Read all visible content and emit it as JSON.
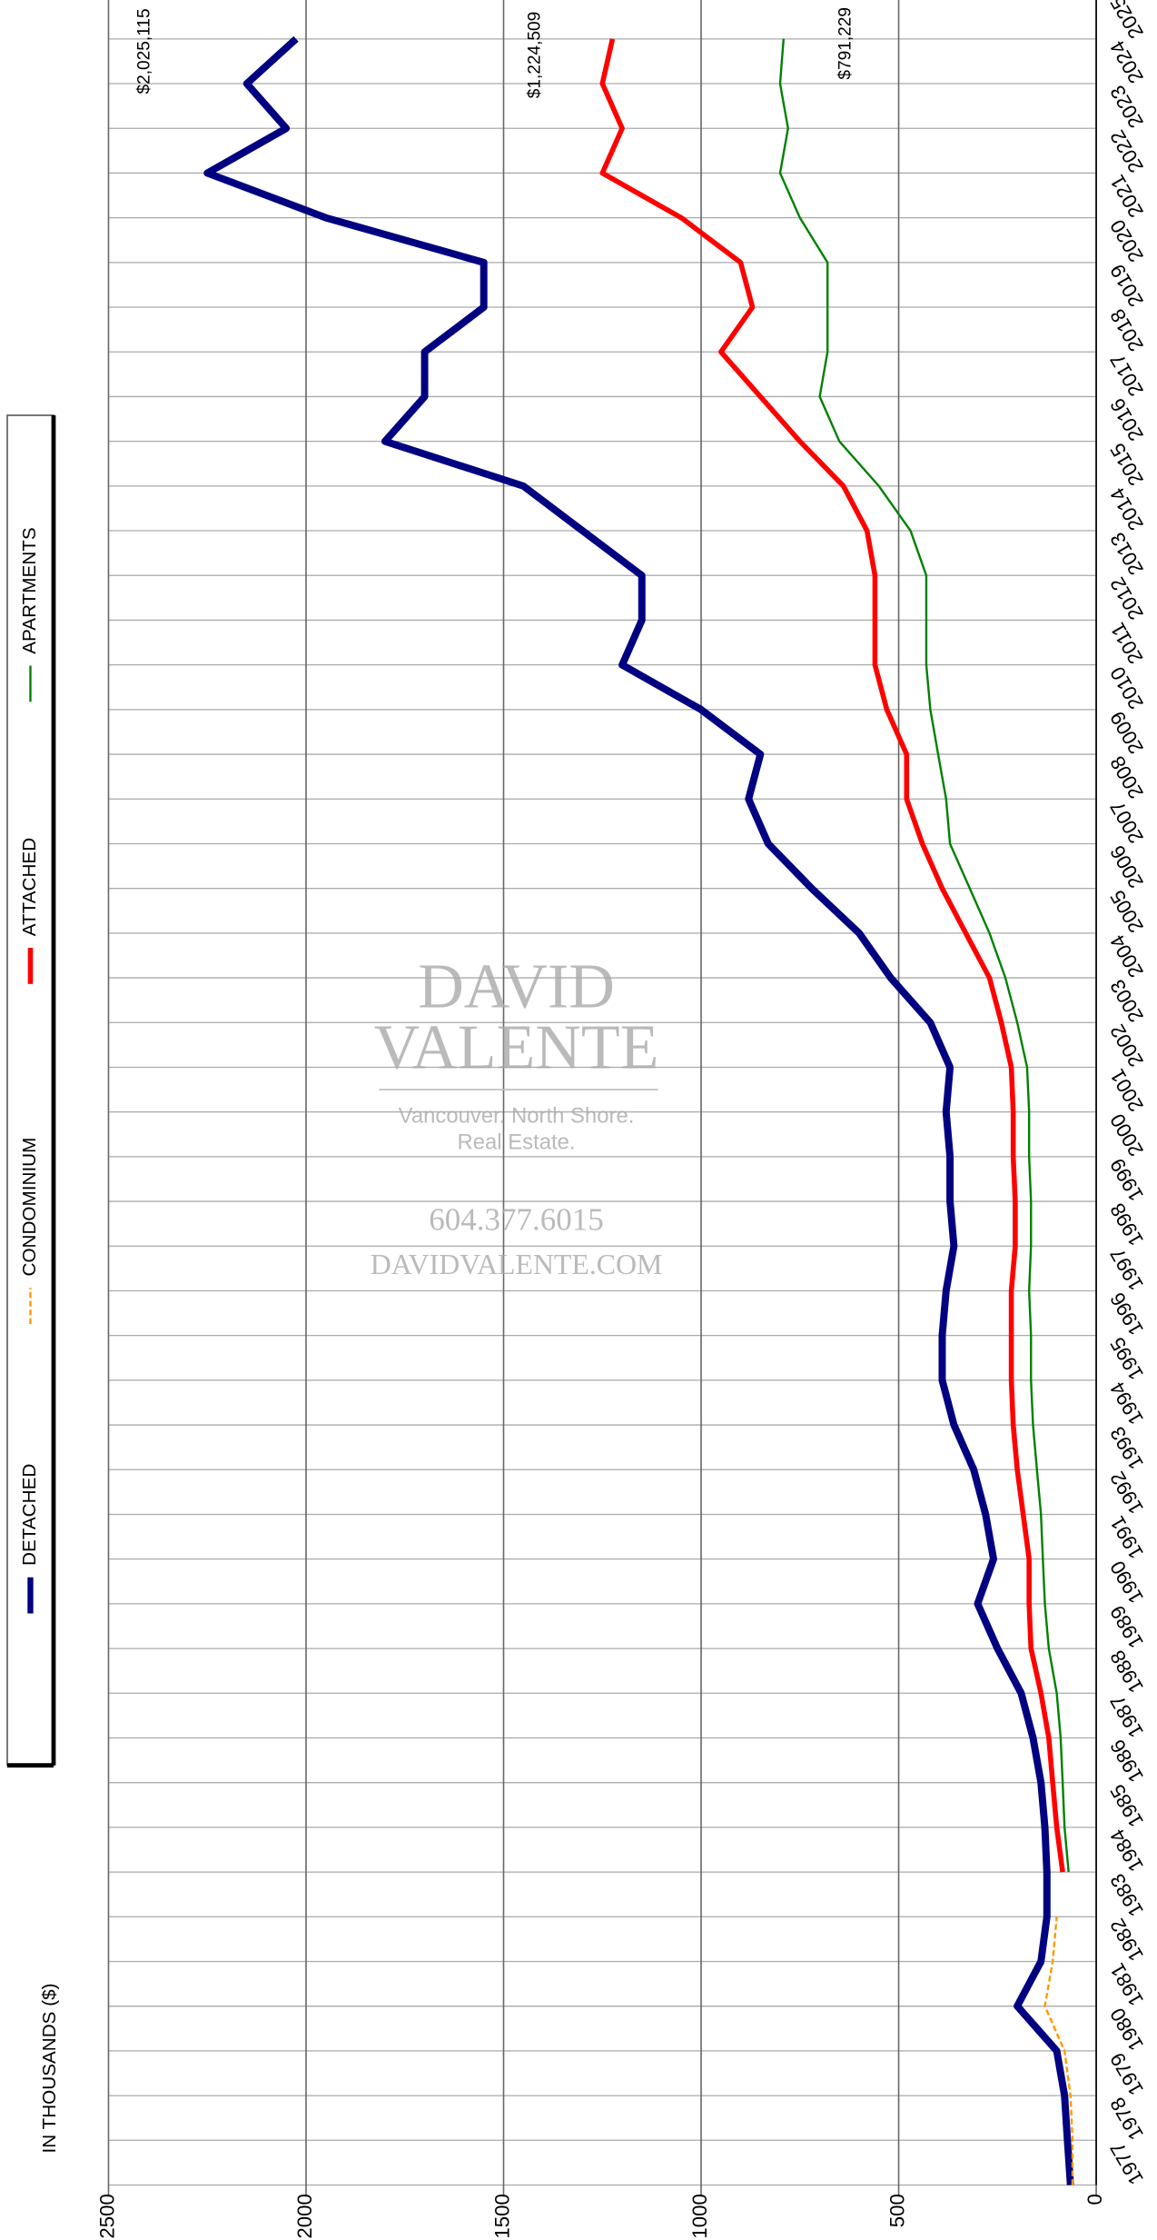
{
  "chart_data": {
    "type": "line",
    "y_label": "IN THOUSANDS ($)",
    "x": [
      1977,
      1978,
      1979,
      1980,
      1981,
      1982,
      1983,
      1984,
      1985,
      1986,
      1987,
      1988,
      1989,
      1990,
      1991,
      1992,
      1993,
      1994,
      1995,
      1996,
      1997,
      1998,
      1999,
      2000,
      2001,
      2002,
      2003,
      2004,
      2005,
      2006,
      2007,
      2008,
      2009,
      2010,
      2011,
      2012,
      2013,
      2014,
      2015,
      2016,
      2017,
      2018,
      2019,
      2020,
      2021,
      2022,
      2023,
      2024,
      2025
    ],
    "xlim": [
      1977,
      2026
    ],
    "ylim": [
      0,
      2500
    ],
    "yticks": [
      0,
      500,
      1000,
      1500,
      2000,
      2500
    ],
    "grid": true,
    "legend": "top",
    "series": [
      {
        "name": "DETACHED",
        "color": "#000080",
        "values": [
          65,
          73,
          80,
          100,
          200,
          140,
          125,
          125,
          130,
          140,
          160,
          190,
          250,
          300,
          260,
          280,
          310,
          360,
          390,
          390,
          380,
          360,
          370,
          370,
          380,
          370,
          420,
          520,
          600,
          720,
          830,
          880,
          850,
          1000,
          1200,
          1150,
          1150,
          1300,
          1450,
          1800,
          1700,
          1700,
          1550,
          1550,
          1950,
          2250,
          2050,
          2150,
          2025.115
        ]
      },
      {
        "name": "CONDOMINIUM",
        "color": "#ff9900",
        "values": [
          60,
          60,
          65,
          80,
          130,
          110,
          100,
          null,
          null,
          null,
          null,
          null,
          null,
          null,
          null,
          null,
          null,
          null,
          null,
          null,
          null,
          null,
          null,
          null,
          null,
          null,
          null,
          null,
          null,
          null,
          null,
          null,
          null,
          null,
          null,
          null,
          null,
          null,
          null,
          null,
          null,
          null,
          null,
          null,
          null,
          null,
          null,
          null,
          null
        ]
      },
      {
        "name": "ATTACHED",
        "color": "#ff0000",
        "values": [
          null,
          null,
          null,
          null,
          null,
          null,
          null,
          85,
          100,
          110,
          120,
          140,
          165,
          170,
          170,
          185,
          200,
          210,
          215,
          215,
          215,
          205,
          205,
          210,
          210,
          215,
          240,
          270,
          330,
          390,
          440,
          480,
          480,
          530,
          560,
          560,
          560,
          580,
          640,
          750,
          850,
          950,
          870,
          900,
          1050,
          1250,
          1200,
          1250,
          1224.509
        ]
      },
      {
        "name": "APARTMENTS",
        "color": "#008000",
        "values": [
          null,
          null,
          null,
          null,
          null,
          null,
          null,
          70,
          80,
          85,
          90,
          100,
          120,
          130,
          135,
          140,
          150,
          160,
          165,
          165,
          170,
          165,
          165,
          170,
          170,
          175,
          200,
          230,
          270,
          320,
          370,
          380,
          400,
          420,
          430,
          430,
          430,
          470,
          550,
          650,
          700,
          680,
          680,
          680,
          750,
          800,
          780,
          800,
          791.229
        ]
      }
    ],
    "annotations": [
      {
        "text": "$2,025,115",
        "value": 2025115
      },
      {
        "text": "$1,224,509",
        "value": 1224509
      },
      {
        "text": "$791,229",
        "value": 791229
      }
    ]
  },
  "watermark": {
    "name1": "DAVID",
    "name2": "VALENTE",
    "tagline1": "Vancouver. North Shore.",
    "tagline2": "Real Estate.",
    "phone": "604.377.6015",
    "site": "DAVIDVALENTE.COM"
  }
}
